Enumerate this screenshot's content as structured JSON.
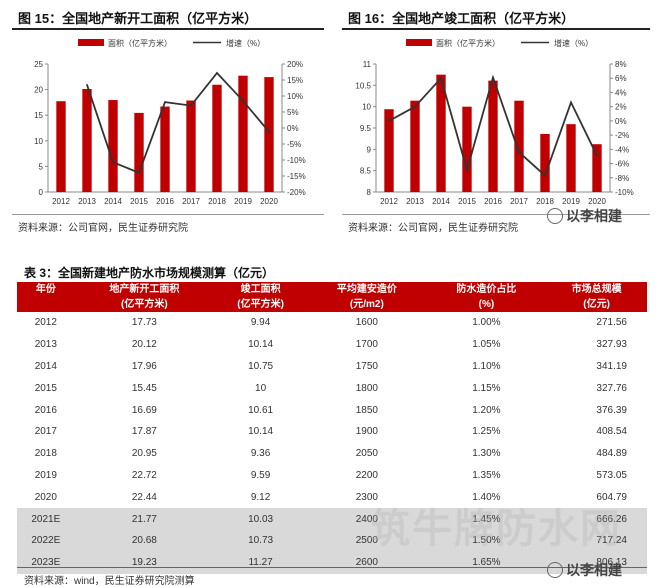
{
  "charts": {
    "left": {
      "figure_title": "图 15：全国地产新开工面积（亿平方米）",
      "source": "资料来源：公司官网，民生证券研究院"
    },
    "right": {
      "figure_title": "图 16：全国地产竣工面积（亿平方米）",
      "source": "资料来源：公司官网，民生证券研究院"
    }
  },
  "chart_data": [
    {
      "type": "bar",
      "title": "图 15：全国地产新开工面积（亿平方米）",
      "categories": [
        "2012",
        "2013",
        "2014",
        "2015",
        "2016",
        "2017",
        "2018",
        "2019",
        "2020"
      ],
      "series": [
        {
          "name": "面积（亿平方米）",
          "type": "bar",
          "axis": "left",
          "color": "#c00000",
          "values": [
            17.73,
            20.12,
            17.96,
            15.45,
            16.69,
            17.87,
            20.95,
            22.72,
            22.44
          ]
        },
        {
          "name": "增速（%）",
          "type": "line",
          "axis": "right",
          "color": "#333333",
          "values": [
            null,
            13.5,
            -10.7,
            -14.0,
            8.1,
            7.0,
            17.2,
            8.5,
            -1.2
          ]
        }
      ],
      "ylim_left": [
        0,
        25
      ],
      "yticks_left": [
        "0",
        "5",
        "10",
        "15",
        "20",
        "25"
      ],
      "ylim_right": [
        -20,
        20
      ],
      "yticks_right": [
        "20%",
        "15%",
        "10%",
        "5%",
        "0%",
        "-5%",
        "-10%",
        "-15%",
        "-20%"
      ],
      "legend_position": "top"
    },
    {
      "type": "bar",
      "title": "图 16：全国地产竣工面积（亿平方米）",
      "categories": [
        "2012",
        "2013",
        "2014",
        "2015",
        "2016",
        "2017",
        "2018",
        "2019",
        "2020"
      ],
      "series": [
        {
          "name": "面积（亿平方米）",
          "type": "bar",
          "axis": "left",
          "color": "#c00000",
          "values": [
            9.94,
            10.14,
            10.75,
            10.0,
            10.61,
            10.14,
            9.36,
            9.59,
            9.12
          ]
        },
        {
          "name": "增速（%）",
          "type": "line",
          "axis": "right",
          "color": "#333333",
          "values": [
            0.0,
            2.0,
            6.0,
            -6.9,
            6.1,
            -4.4,
            -7.7,
            2.6,
            -4.9
          ]
        }
      ],
      "ylim_left": [
        8,
        11
      ],
      "yticks_left": [
        "8",
        "8.5",
        "9",
        "9.5",
        "10",
        "10.5",
        "11"
      ],
      "ylim_right": [
        -10,
        8
      ],
      "yticks_right": [
        "8%",
        "6%",
        "4%",
        "2%",
        "0%",
        "-2%",
        "-4%",
        "-6%",
        "-8%",
        "-10%"
      ],
      "legend_position": "top"
    }
  ],
  "table": {
    "title": "表 3：全国新建地产防水市场规模测算（亿元）",
    "headers": [
      {
        "line1": "年份",
        "line2": ""
      },
      {
        "line1": "地产新开工面积",
        "line2": "(亿平方米)"
      },
      {
        "line1": "竣工面积",
        "line2": "(亿平方米)"
      },
      {
        "line1": "平均建安造价",
        "line2": "(元/m2)"
      },
      {
        "line1": "防水造价占比",
        "line2": "(%)"
      },
      {
        "line1": "市场总规模",
        "line2": "(亿元)"
      }
    ],
    "rows": [
      [
        "2012",
        "17.73",
        "9.94",
        "1600",
        "1.00%",
        "271.56"
      ],
      [
        "2013",
        "20.12",
        "10.14",
        "1700",
        "1.05%",
        "327.93"
      ],
      [
        "2014",
        "17.96",
        "10.75",
        "1750",
        "1.10%",
        "341.19"
      ],
      [
        "2015",
        "15.45",
        "10",
        "1800",
        "1.15%",
        "327.76"
      ],
      [
        "2016",
        "16.69",
        "10.61",
        "1850",
        "1.20%",
        "376.39"
      ],
      [
        "2017",
        "17.87",
        "10.14",
        "1900",
        "1.25%",
        "408.54"
      ],
      [
        "2018",
        "20.95",
        "9.36",
        "2050",
        "1.30%",
        "484.89"
      ],
      [
        "2019",
        "22.72",
        "9.59",
        "2200",
        "1.35%",
        "573.05"
      ],
      [
        "2020",
        "22.44",
        "9.12",
        "2300",
        "1.40%",
        "604.79"
      ],
      [
        "2021E",
        "21.77",
        "10.03",
        "2400",
        "1.45%",
        "666.26"
      ],
      [
        "2022E",
        "20.68",
        "10.73",
        "2500",
        "1.50%",
        "717.24"
      ],
      [
        "2023E",
        "19.23",
        "11.27",
        "2600",
        "1.65%",
        "806.13"
      ]
    ],
    "estimate_rows": [
      9,
      10,
      11
    ],
    "source": "资料来源：wind，民生证券研究院测算"
  },
  "watermarks": {
    "brand": "以李相建",
    "big": "筑牛牌防水网"
  }
}
